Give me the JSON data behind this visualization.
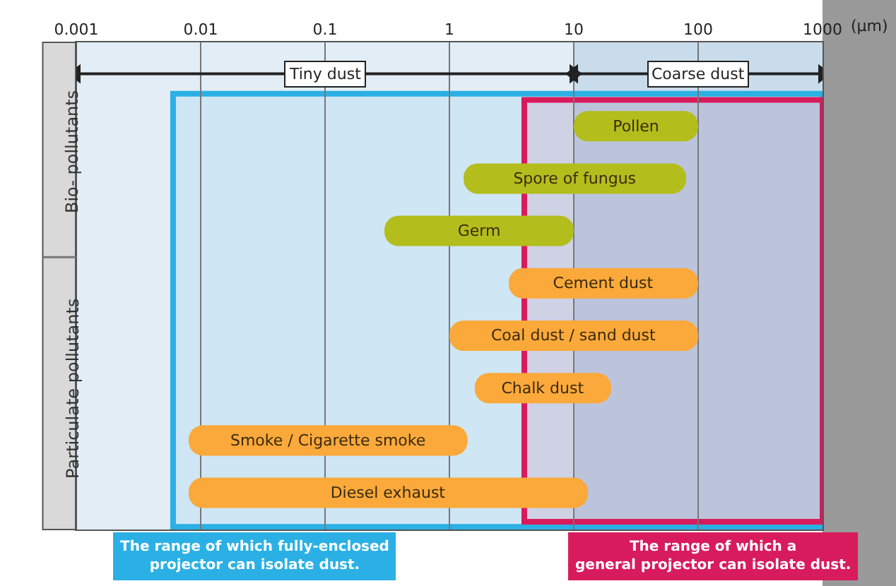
{
  "chart_data": {
    "type": "bar",
    "orientation": "horizontal",
    "log": "x",
    "categories": [
      "Pollen",
      "Spore of fungus",
      "Germ",
      "Cement dust",
      "Coal dust / sand dust",
      "Chalk dust",
      "Smoke / Cigarette smoke",
      "Diesel exhaust"
    ],
    "base": [
      10,
      1.3,
      0.3,
      3,
      1,
      1.6,
      0.008,
      0.008
    ],
    "values": [
      90,
      78.7,
      9.7,
      97,
      99,
      18.4,
      1.392,
      12.992
    ],
    "colors": [
      "#b3bd1c",
      "#b3bd1c",
      "#b3bd1c",
      "#fba93a",
      "#fba93a",
      "#fba93a",
      "#fba93a",
      "#fba93a"
    ],
    "xlabel": "(µm)",
    "xlim": [
      0.001,
      1000
    ],
    "xticks": [
      0.001,
      0.01,
      0.1,
      1,
      10,
      100,
      1000
    ],
    "tick_labels": "x",
    "grid": "x",
    "annotations": [
      "Bio- pollutants",
      "Particulate pollutants"
    ],
    "bands": [
      {
        "axis": "x",
        "from": 0.001,
        "to": 10,
        "label": "Tiny dust"
      },
      {
        "axis": "x",
        "from": 10,
        "to": 1000,
        "label": "Coarse dust"
      },
      {
        "axis": "x",
        "from": 0.006,
        "to": 1000,
        "label": "The range of which fully-enclosed projector can isolate dust.",
        "color": "#2ab0e4"
      },
      {
        "axis": "x",
        "from": 4,
        "to": 1000,
        "label": "The range of which a general projector can isolate dust.",
        "color": "#d81b5c"
      }
    ]
  }
}
